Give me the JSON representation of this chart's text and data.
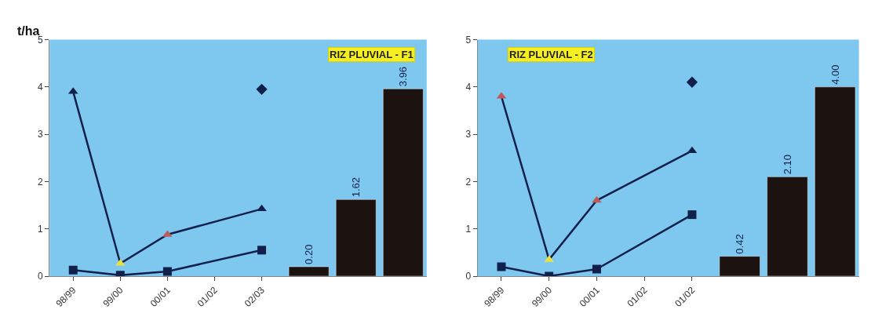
{
  "chart_data": [
    {
      "type": "line",
      "title": "RIZ PLUVIAL - F1",
      "ylabel": "t/ha",
      "categories": [
        "98/99",
        "99/00",
        "00/01",
        "01/02",
        "02/03",
        null,
        null,
        null
      ],
      "ylim": [
        0,
        5
      ],
      "yticks": [
        0,
        1,
        2,
        3,
        4,
        5
      ],
      "grid": false,
      "series": [
        {
          "marker": "triangle",
          "color": "#10204a",
          "colors": [
            "#10204a",
            "#e8e040",
            "#c05a5a",
            null,
            "#10204a",
            null,
            null,
            null
          ],
          "values": [
            3.9,
            0.27,
            0.88,
            null,
            1.42,
            null,
            null,
            null
          ]
        },
        {
          "marker": "square",
          "color": "#10204a",
          "values": [
            0.13,
            0.02,
            0.1,
            null,
            0.55,
            null,
            null,
            null
          ]
        },
        {
          "type": "scatter",
          "marker": "diamond",
          "color": "#10204a",
          "values": [
            null,
            null,
            null,
            null,
            3.95,
            null,
            null,
            null
          ]
        },
        {
          "type": "bar",
          "color": "#1c1210",
          "values": [
            null,
            null,
            null,
            null,
            null,
            0.2,
            1.62,
            3.96
          ],
          "value_labels": [
            null,
            null,
            null,
            null,
            null,
            "0.20",
            "1.62",
            "3.96"
          ]
        }
      ]
    },
    {
      "type": "line",
      "title": "RIZ PLUVIAL - F2",
      "categories": [
        "98/99",
        "99/00",
        "00/01",
        "01/02",
        "01/02",
        null,
        null,
        null
      ],
      "ylim": [
        0,
        5
      ],
      "yticks": [
        0,
        1,
        2,
        3,
        4,
        5
      ],
      "grid": false,
      "series": [
        {
          "marker": "triangle",
          "color": "#10204a",
          "colors": [
            "#c05a5a",
            "#e8e040",
            "#c05a5a",
            null,
            "#10204a",
            null,
            null,
            null
          ],
          "values": [
            3.8,
            0.35,
            1.6,
            null,
            2.65,
            null,
            null,
            null
          ]
        },
        {
          "marker": "square",
          "color": "#10204a",
          "values": [
            0.2,
            0.0,
            0.15,
            null,
            1.3,
            null,
            null,
            null
          ]
        },
        {
          "type": "scatter",
          "marker": "diamond",
          "color": "#10204a",
          "values": [
            null,
            null,
            null,
            null,
            4.1,
            null,
            null,
            null
          ]
        },
        {
          "type": "bar",
          "color": "#1c1210",
          "values": [
            null,
            null,
            null,
            null,
            null,
            0.42,
            2.1,
            4.0
          ],
          "value_labels": [
            null,
            null,
            null,
            null,
            null,
            "0.42",
            "2.10",
            "4.00"
          ]
        }
      ]
    }
  ]
}
